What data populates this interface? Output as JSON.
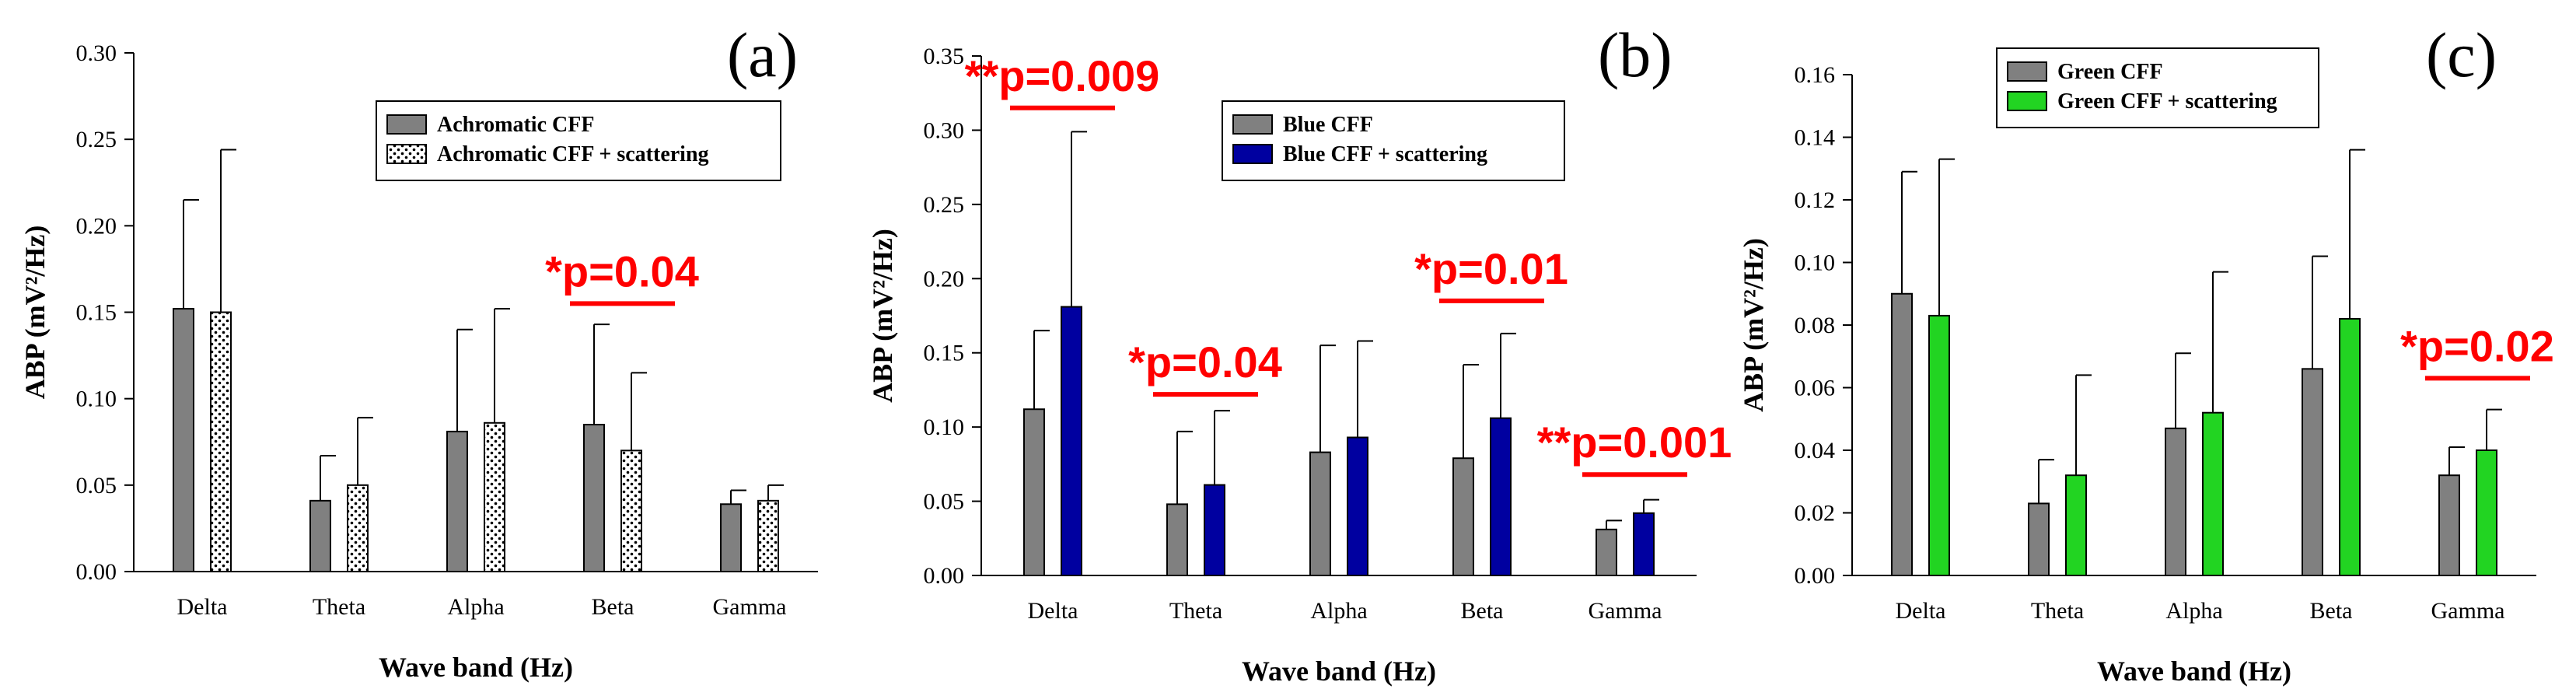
{
  "chart_data": [
    {
      "type": "bar",
      "panel_label": "(a)",
      "categories": [
        "Delta",
        "Theta",
        "Alpha",
        "Beta",
        "Gamma"
      ],
      "xlabel": "Wave band (Hz)",
      "ylabel": "ABP (mV²/Hz)",
      "ylim": [
        0,
        0.3
      ],
      "yticks": [
        "0.00",
        "0.05",
        "0.10",
        "0.15",
        "0.20",
        "0.25",
        "0.30"
      ],
      "yticks_values": [
        0,
        0.05,
        0.1,
        0.15,
        0.2,
        0.25,
        0.3
      ],
      "legend_position": "top-right",
      "series": [
        {
          "name": "Achromatic CFF",
          "values": [
            0.152,
            0.041,
            0.081,
            0.085,
            0.039
          ],
          "errors": [
            0.063,
            0.026,
            0.059,
            0.058,
            0.008
          ],
          "color": "#808080",
          "pattern": "solid"
        },
        {
          "name": "Achromatic CFF + scattering",
          "values": [
            0.15,
            0.05,
            0.086,
            0.07,
            0.041
          ],
          "errors": [
            0.094,
            0.039,
            0.066,
            0.045,
            0.009
          ],
          "color": "#ffffff",
          "pattern": "dots"
        }
      ],
      "annotations": [
        {
          "text": "*p=0.04",
          "category_index": 3,
          "value": 0.155
        }
      ]
    },
    {
      "type": "bar",
      "panel_label": "(b)",
      "categories": [
        "Delta",
        "Theta",
        "Alpha",
        "Beta",
        "Gamma"
      ],
      "xlabel": "Wave band (Hz)",
      "ylabel": "ABP (mV²/Hz)",
      "ylim": [
        0,
        0.35
      ],
      "yticks": [
        "0.00",
        "0.05",
        "0.10",
        "0.15",
        "0.20",
        "0.25",
        "0.30",
        "0.35"
      ],
      "yticks_values": [
        0,
        0.05,
        0.1,
        0.15,
        0.2,
        0.25,
        0.3,
        0.35
      ],
      "legend_position": "top-right",
      "series": [
        {
          "name": "Blue CFF",
          "values": [
            0.112,
            0.048,
            0.083,
            0.079,
            0.031
          ],
          "errors": [
            0.053,
            0.049,
            0.072,
            0.063,
            0.006
          ],
          "color": "#808080",
          "pattern": "solid"
        },
        {
          "name": "Blue CFF + scattering",
          "values": [
            0.181,
            0.061,
            0.093,
            0.106,
            0.042
          ],
          "errors": [
            0.118,
            0.05,
            0.065,
            0.057,
            0.009
          ],
          "color": "#0000a0",
          "pattern": "solid"
        }
      ],
      "annotations": [
        {
          "text": "**p=0.009",
          "category_index": 0,
          "value": 0.315
        },
        {
          "text": "*p=0.04",
          "category_index": 1,
          "value": 0.122
        },
        {
          "text": "*p=0.01",
          "category_index": 3,
          "value": 0.185
        },
        {
          "text": "**p=0.001",
          "category_index": 4,
          "value": 0.068
        }
      ]
    },
    {
      "type": "bar",
      "panel_label": "(c)",
      "categories": [
        "Delta",
        "Theta",
        "Alpha",
        "Beta",
        "Gamma"
      ],
      "xlabel": "Wave band (Hz)",
      "ylabel": "ABP (mV²/Hz)",
      "ylim": [
        0,
        0.16
      ],
      "yticks": [
        "0.00",
        "0.02",
        "0.04",
        "0.06",
        "0.08",
        "0.10",
        "0.12",
        "0.14",
        "0.16"
      ],
      "yticks_values": [
        0,
        0.02,
        0.04,
        0.06,
        0.08,
        0.1,
        0.12,
        0.14,
        0.16
      ],
      "legend_position": "top-left",
      "series": [
        {
          "name": "Green CFF",
          "values": [
            0.09,
            0.023,
            0.047,
            0.066,
            0.032
          ],
          "errors": [
            0.039,
            0.014,
            0.024,
            0.036,
            0.009
          ],
          "color": "#808080",
          "pattern": "solid"
        },
        {
          "name": "Green CFF + scattering",
          "values": [
            0.083,
            0.032,
            0.052,
            0.082,
            0.04
          ],
          "errors": [
            0.05,
            0.032,
            0.045,
            0.054,
            0.013
          ],
          "color": "#22d422",
          "pattern": "solid"
        }
      ],
      "annotations": [
        {
          "text": "*p=0.02",
          "category_index": 4,
          "value": 0.063
        }
      ]
    }
  ]
}
